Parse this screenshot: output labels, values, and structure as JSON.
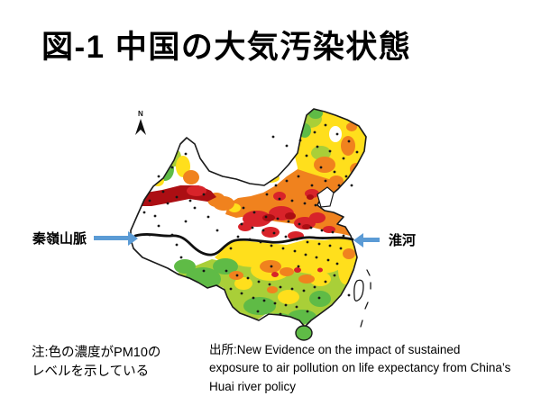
{
  "slide": {
    "title": "図-1 中国の大気汚染状態",
    "annotations": {
      "qinling": "秦嶺山脈",
      "huai": "淮河",
      "north": "N"
    },
    "note_lines": [
      "注:色の濃度がPM10の",
      "レベルを示している"
    ],
    "source_lines": [
      "出所:New Evidence on the impact of sustained",
      "exposure to air pollution on life expectancy from China’s",
      "Huai river policy"
    ],
    "colors": {
      "annotation_arrow": "#5B9BD5",
      "map_outline": "#1A1A1A",
      "pm_level_green": "#5FBB46",
      "pm_level_yellow_green": "#A9CF38",
      "pm_level_yellow": "#FFDF1C",
      "pm_level_orange": "#F0821E",
      "pm_level_red": "#D8232A",
      "pm_level_dark_red": "#AC0E13",
      "no_data_white": "#FFFFFF"
    }
  }
}
